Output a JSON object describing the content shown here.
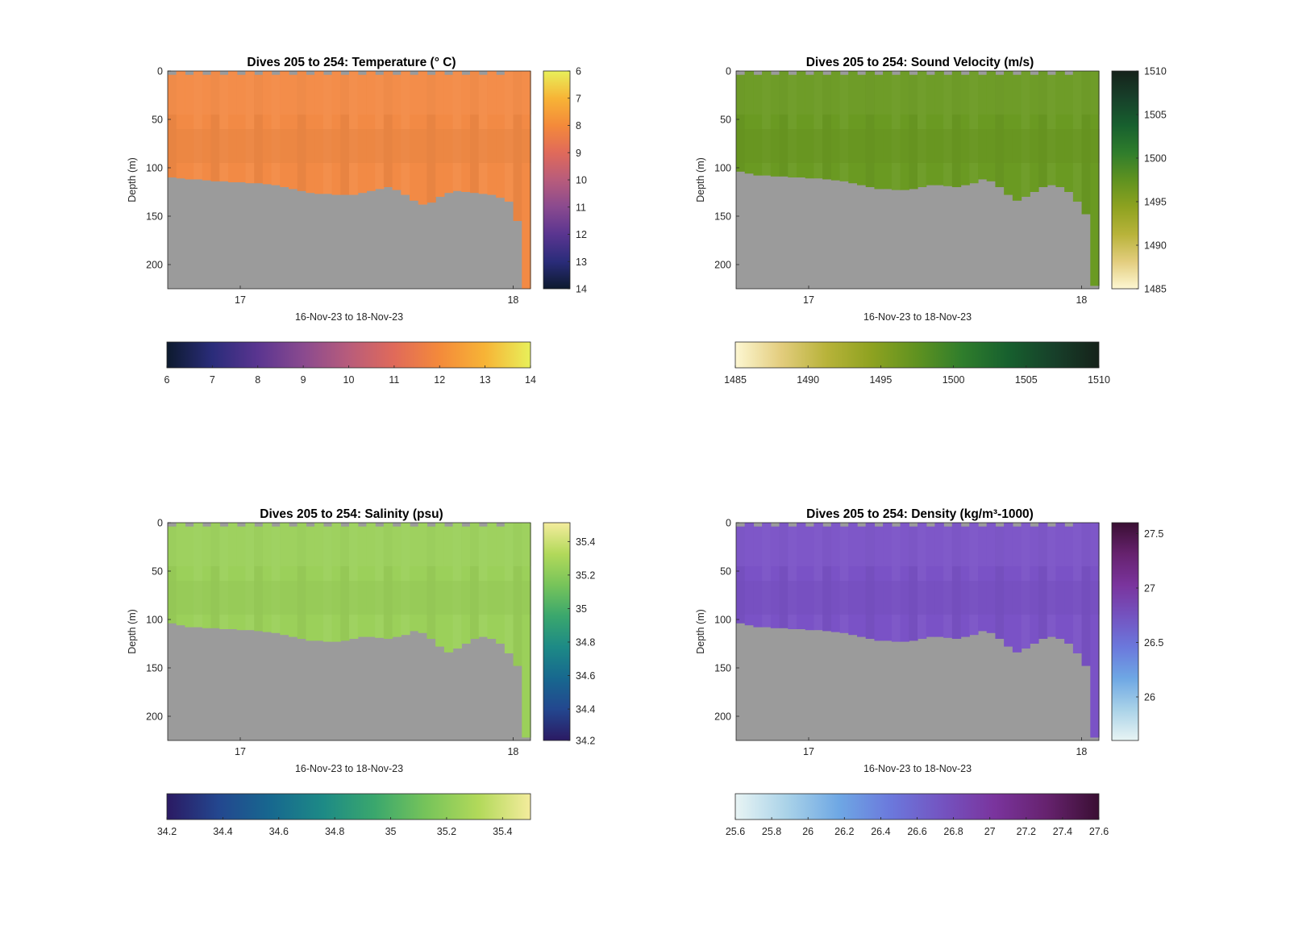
{
  "figure": {
    "panels": [
      {
        "id": "temperature",
        "title": "Dives 205 to 254: Temperature (° C)",
        "ylabel": "Depth (m)",
        "xlabel": "16-Nov-23 to 18-Nov-23",
        "xticks": [
          "17",
          "18"
        ],
        "yticks": [
          "0",
          "50",
          "100",
          "150",
          "200"
        ],
        "colormap": [
          "#0d1a2e",
          "#2a2c7a",
          "#5a3590",
          "#8a4a8f",
          "#b85c7b",
          "#e06a5a",
          "#f48a3a",
          "#f7b436",
          "#e8f05a"
        ],
        "fill_color": "#f28a45",
        "vbar_ticks": [
          "6",
          "7",
          "8",
          "9",
          "10",
          "11",
          "12",
          "13",
          "14"
        ],
        "hbar_ticks": [
          "6",
          "7",
          "8",
          "9",
          "10",
          "11",
          "12",
          "13",
          "14"
        ],
        "surface_gaps": true,
        "depth_offset": 0
      },
      {
        "id": "sound-velocity",
        "title": "Dives 205 to 254: Sound Velocity (m/s)",
        "ylabel": "Depth (m)",
        "xlabel": "16-Nov-23 to 18-Nov-23",
        "xticks": [
          "17",
          "18"
        ],
        "yticks": [
          "0",
          "50",
          "100",
          "150",
          "200"
        ],
        "colormap": [
          "#fdf7d2",
          "#e3cd7e",
          "#b8b33a",
          "#8ea220",
          "#5f9220",
          "#2f7d2c",
          "#17602e",
          "#17402a",
          "#16221a"
        ],
        "fill_color": "#6a9a22",
        "vbar_ticks": [
          "1510",
          "1505",
          "1500",
          "1495",
          "1490",
          "1485"
        ],
        "hbar_ticks": [
          "1485",
          "1490",
          "1495",
          "1500",
          "1505",
          "1510"
        ],
        "surface_gaps": true,
        "depth_offset": 0
      },
      {
        "id": "salinity",
        "title": "Dives 205 to 254: Salinity (psu)",
        "ylabel": "Depth (m)",
        "xlabel": "16-Nov-23 to 18-Nov-23",
        "xticks": [
          "17",
          "18"
        ],
        "yticks": [
          "0",
          "50",
          "100",
          "150",
          "200"
        ],
        "colormap": [
          "#2b1a63",
          "#23478f",
          "#17688f",
          "#1d8a86",
          "#3aa76d",
          "#77c45a",
          "#b2d95a",
          "#f4ec9d"
        ],
        "fill_color": "#9bd05a",
        "vbar_ticks": [
          "35.4",
          "35.2",
          "35",
          "34.8",
          "34.6",
          "34.4",
          "34.2"
        ],
        "hbar_ticks": [
          "34.2",
          "34.4",
          "34.6",
          "34.8",
          "35",
          "35.2",
          "35.4"
        ],
        "surface_gaps": true,
        "depth_offset": 0
      },
      {
        "id": "density",
        "title": "Dives 205 to 254: Density (kg/m³-1000)",
        "ylabel": "Depth (m)",
        "xlabel": "16-Nov-23 to 18-Nov-23",
        "xticks": [
          "17",
          "18"
        ],
        "yticks": [
          "0",
          "50",
          "100",
          "150",
          "200"
        ],
        "colormap": [
          "#e8f4f4",
          "#a9d2e8",
          "#6ea7e4",
          "#6b78dc",
          "#7453c0",
          "#7a349d",
          "#66226e",
          "#3a0f33"
        ],
        "fill_color": "#7a52c6",
        "vbar_ticks": [
          "27.5",
          "27",
          "26.5",
          "26"
        ],
        "hbar_ticks": [
          "25.6",
          "25.8",
          "26",
          "26.2",
          "26.4",
          "26.6",
          "26.8",
          "27",
          "27.2",
          "27.4",
          "27.6"
        ],
        "surface_gaps": true,
        "depth_offset": 0
      }
    ],
    "land_color": "#9b9b9b",
    "chart_data": [
      {
        "type": "heatmap",
        "title": "Dives 205 to 254: Temperature (° C)",
        "xlabel": "16-Nov-23 to 18-Nov-23",
        "ylabel": "Depth (m)",
        "ylim": [
          225,
          0
        ],
        "x_tick_labels": [
          "17",
          "18"
        ],
        "colorbar_range": [
          6,
          14
        ],
        "dominant_value": 11.8,
        "bottom_depth_m": [
          110,
          111,
          112,
          112,
          113,
          114,
          114,
          115,
          115,
          116,
          116,
          117,
          118,
          120,
          122,
          124,
          126,
          127,
          127,
          128,
          128,
          128,
          126,
          124,
          122,
          120,
          123,
          128,
          134,
          138,
          136,
          130,
          126,
          124,
          125,
          126,
          127,
          128,
          131,
          135,
          155,
          225
        ]
      },
      {
        "type": "heatmap",
        "title": "Dives 205 to 254: Sound Velocity (m/s)",
        "xlabel": "16-Nov-23 to 18-Nov-23",
        "ylabel": "Depth (m)",
        "ylim": [
          225,
          0
        ],
        "x_tick_labels": [
          "17",
          "18"
        ],
        "colorbar_range": [
          1485,
          1510
        ],
        "dominant_value": 1498,
        "bottom_depth_m": [
          104,
          106,
          108,
          108,
          109,
          109,
          110,
          110,
          111,
          111,
          112,
          113,
          114,
          116,
          118,
          120,
          122,
          122,
          123,
          123,
          122,
          120,
          118,
          118,
          119,
          120,
          118,
          116,
          112,
          114,
          120,
          128,
          134,
          130,
          125,
          120,
          118,
          120,
          125,
          135,
          148,
          222
        ]
      },
      {
        "type": "heatmap",
        "title": "Dives 205 to 254: Salinity (psu)",
        "xlabel": "16-Nov-23 to 18-Nov-23",
        "ylabel": "Depth (m)",
        "ylim": [
          225,
          0
        ],
        "x_tick_labels": [
          "17",
          "18"
        ],
        "colorbar_range": [
          34.2,
          35.5
        ],
        "dominant_value": 35.25,
        "bottom_depth_m": [
          104,
          106,
          108,
          108,
          109,
          109,
          110,
          110,
          111,
          111,
          112,
          113,
          114,
          116,
          118,
          120,
          122,
          122,
          123,
          123,
          122,
          120,
          118,
          118,
          119,
          120,
          118,
          116,
          112,
          114,
          120,
          128,
          134,
          130,
          125,
          120,
          118,
          120,
          125,
          135,
          148,
          222
        ]
      },
      {
        "type": "heatmap",
        "title": "Dives 205 to 254: Density (kg/m³-1000)",
        "xlabel": "16-Nov-23 to 18-Nov-23",
        "ylabel": "Depth (m)",
        "ylim": [
          225,
          0
        ],
        "x_tick_labels": [
          "17",
          "18"
        ],
        "colorbar_range": [
          25.6,
          27.6
        ],
        "dominant_value": 26.8,
        "bottom_depth_m": [
          104,
          106,
          108,
          108,
          109,
          109,
          110,
          110,
          111,
          111,
          112,
          113,
          114,
          116,
          118,
          120,
          122,
          122,
          123,
          123,
          122,
          120,
          118,
          118,
          119,
          120,
          118,
          116,
          112,
          114,
          120,
          128,
          134,
          130,
          125,
          120,
          118,
          120,
          125,
          135,
          148,
          222
        ]
      }
    ]
  }
}
